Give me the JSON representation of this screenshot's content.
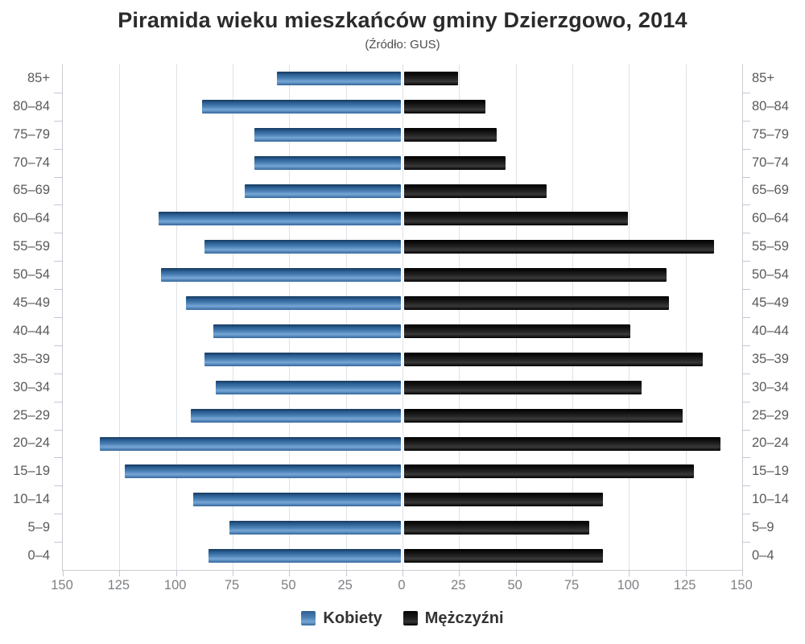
{
  "title": "Piramida wieku mieszkańców gminy Dzierzgowo, 2014",
  "subtitle": "(Źródło: GUS)",
  "chart_data": {
    "type": "bar",
    "variant": "population-pyramid",
    "orientation": "horizontal",
    "title": "Piramida wieku mieszkańców gminy Dzierzgowo, 2014",
    "subtitle": "(Źródło: GUS)",
    "categories": [
      "85+",
      "80–84",
      "75–79",
      "70–74",
      "65–69",
      "60–64",
      "55–59",
      "50–54",
      "45–49",
      "40–44",
      "35–39",
      "30–34",
      "25–29",
      "20–24",
      "15–19",
      "10–14",
      "5–9",
      "0–4"
    ],
    "series": [
      {
        "name": "Kobiety",
        "side": "left",
        "color": "#4379b1",
        "values": [
          55,
          88,
          65,
          65,
          69,
          107,
          87,
          106,
          95,
          83,
          87,
          82,
          93,
          133,
          122,
          92,
          76,
          85
        ]
      },
      {
        "name": "Mężczyźni",
        "side": "right",
        "color": "#141414",
        "values": [
          24,
          36,
          41,
          45,
          63,
          99,
          137,
          116,
          117,
          100,
          132,
          105,
          123,
          140,
          128,
          88,
          82,
          88
        ]
      }
    ],
    "x_axis": {
      "min": -150,
      "max": 150,
      "tick_step": 25,
      "tick_labels": [
        "150",
        "125",
        "100",
        "75",
        "50",
        "25",
        "0",
        "25",
        "50",
        "75",
        "100",
        "125",
        "150"
      ]
    },
    "grid": true,
    "legend_position": "bottom",
    "colors": {
      "women_bar": "#4379b1",
      "men_bar": "#141414",
      "gridline": "#dde1e6",
      "axis_text": "#5a5a5a",
      "tick_text": "#7c7f84"
    }
  }
}
